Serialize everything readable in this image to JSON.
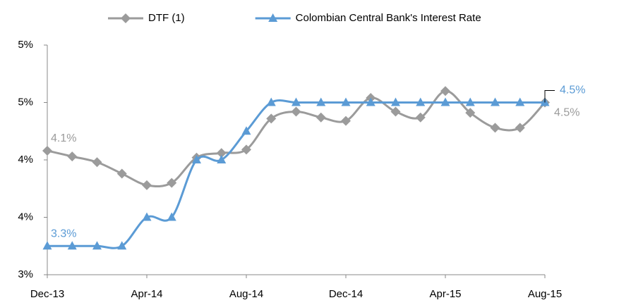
{
  "chart_data": {
    "type": "line",
    "categories": [
      "Dec-13",
      null,
      null,
      null,
      "Apr-14",
      null,
      null,
      null,
      "Aug-14",
      null,
      null,
      null,
      "Dec-14",
      null,
      null,
      null,
      "Apr-15",
      null,
      null,
      null,
      "Aug-15"
    ],
    "ylim": [
      3.0,
      5.0
    ],
    "yticks": [
      {
        "value": 3.0,
        "label": "3%"
      },
      {
        "value": 3.5,
        "label": "4%"
      },
      {
        "value": 4.0,
        "label": "4%"
      },
      {
        "value": 4.5,
        "label": "5%"
      },
      {
        "value": 5.0,
        "label": "5%"
      }
    ],
    "legend": "top",
    "series": [
      {
        "name": "DTF (1)",
        "color": "#9b9b9b",
        "marker": "diamond",
        "values": [
          4.08,
          4.03,
          3.98,
          3.88,
          3.78,
          3.8,
          4.02,
          4.06,
          4.09,
          4.36,
          4.42,
          4.37,
          4.34,
          4.54,
          4.42,
          4.37,
          4.6,
          4.41,
          4.28,
          4.28,
          4.5
        ],
        "value_labels": [
          "4.1%",
          null,
          null,
          null,
          null,
          null,
          null,
          null,
          null,
          null,
          null,
          null,
          null,
          null,
          null,
          null,
          null,
          null,
          null,
          null,
          "4.5%"
        ]
      },
      {
        "name": "Colombian Central Bank's Interest Rate",
        "color": "#5b9bd5",
        "marker": "triangle",
        "values": [
          3.25,
          3.25,
          3.25,
          3.25,
          3.5,
          3.5,
          4.0,
          4.0,
          4.25,
          4.5,
          4.5,
          4.5,
          4.5,
          4.5,
          4.5,
          4.5,
          4.5,
          4.5,
          4.5,
          4.5,
          4.5
        ],
        "value_labels": [
          "3.3%",
          null,
          null,
          null,
          null,
          null,
          null,
          null,
          null,
          null,
          null,
          null,
          null,
          null,
          null,
          null,
          null,
          null,
          null,
          null,
          "4.5%"
        ]
      }
    ]
  }
}
